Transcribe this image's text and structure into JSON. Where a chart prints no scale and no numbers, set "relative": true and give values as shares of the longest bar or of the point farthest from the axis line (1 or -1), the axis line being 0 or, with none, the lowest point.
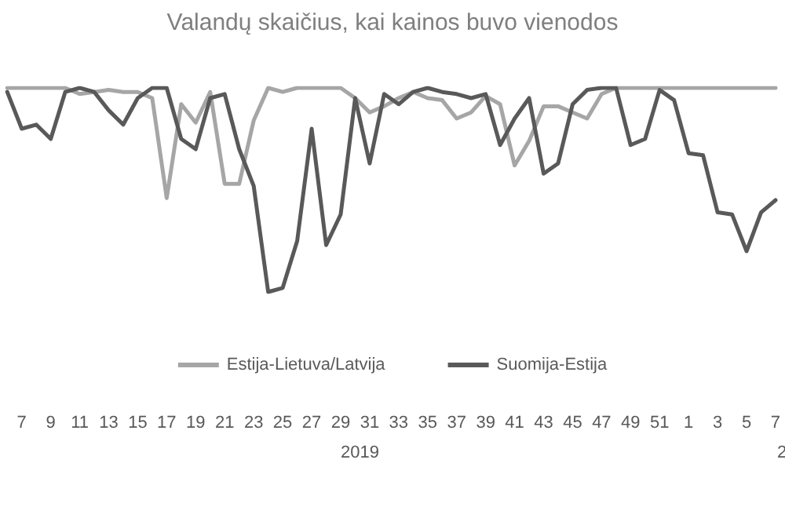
{
  "chart_data": {
    "type": "line",
    "title": "Valandų skaičius, kai kainos buvo vienodos",
    "relative": true,
    "legend": "bottom",
    "grid": false,
    "marker": "none",
    "line_style": "solid",
    "categories": [
      null,
      "7",
      null,
      "9",
      null,
      "11",
      null,
      "13",
      null,
      "15",
      null,
      "17",
      null,
      "19",
      null,
      "21",
      null,
      "23",
      null,
      "25",
      null,
      "27",
      null,
      "29",
      null,
      "31",
      null,
      "33",
      null,
      "35",
      null,
      "37",
      null,
      "39",
      null,
      "41",
      null,
      "43",
      null,
      "45",
      null,
      "47",
      null,
      "49",
      null,
      "51",
      null,
      "1",
      null,
      "3",
      null,
      "5",
      null,
      "7"
    ],
    "series": [
      {
        "name": "Estija-Lietuva/Latvija",
        "color": "#a6a6a6",
        "values": [
          1,
          1,
          1,
          1,
          1,
          0.97,
          0.98,
          0.99,
          0.98,
          0.98,
          0.95,
          0.46,
          0.92,
          0.83,
          0.98,
          0.53,
          0.53,
          0.84,
          1,
          0.98,
          1,
          1,
          1,
          1,
          0.95,
          0.88,
          0.91,
          0.95,
          0.98,
          0.95,
          0.94,
          0.85,
          0.88,
          0.96,
          0.92,
          0.62,
          0.74,
          0.91,
          0.91,
          0.88,
          0.85,
          0.97,
          1,
          1,
          1,
          1,
          1,
          1,
          1,
          1,
          1,
          1,
          1,
          1
        ]
      },
      {
        "name": "Suomija-Estija",
        "color": "#595959",
        "values": [
          0.98,
          0.8,
          0.82,
          0.75,
          0.98,
          1,
          0.98,
          0.89,
          0.82,
          0.95,
          1,
          1,
          0.75,
          0.7,
          0.95,
          0.97,
          0.7,
          0.52,
          0,
          0.02,
          0.25,
          0.8,
          0.23,
          0.38,
          0.95,
          0.63,
          0.97,
          0.92,
          0.98,
          1,
          0.98,
          0.97,
          0.95,
          0.97,
          0.72,
          0.85,
          0.95,
          0.58,
          0.63,
          0.92,
          0.99,
          1,
          1,
          0.72,
          0.75,
          0.99,
          0.94,
          0.68,
          0.67,
          0.39,
          0.38,
          0.2,
          0.39,
          0.45
        ]
      }
    ],
    "annotations": [
      "2019",
      "2"
    ]
  }
}
